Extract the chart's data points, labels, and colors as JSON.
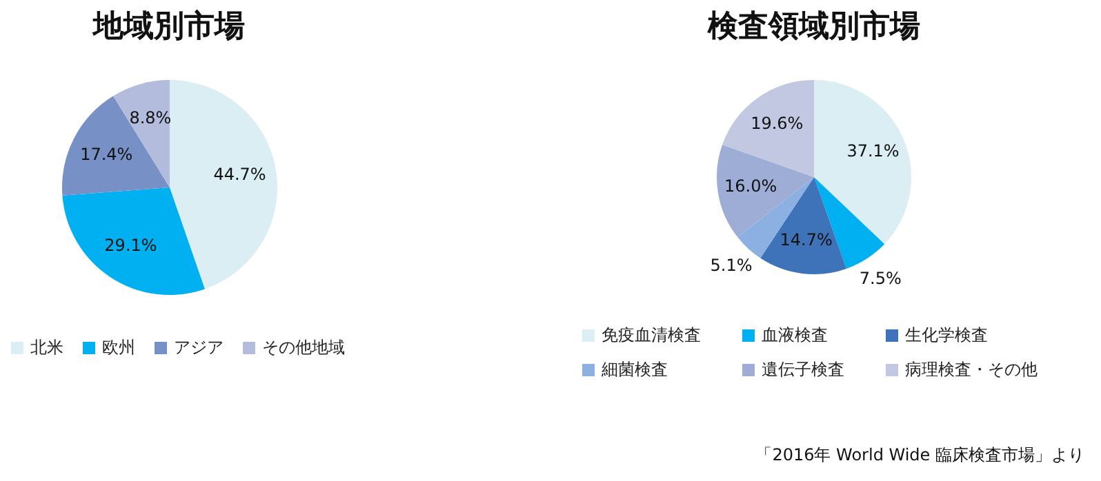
{
  "chart_data": [
    {
      "type": "pie",
      "title": "地域別市場",
      "categories": [
        "北米",
        "欧州",
        "アジア",
        "その他地域"
      ],
      "values": [
        44.7,
        29.1,
        17.4,
        8.8
      ],
      "value_labels": [
        "44.7%",
        "29.1%",
        "17.4%",
        "8.8%"
      ],
      "colors": [
        "#daeef3",
        "#00b0f0",
        "#7791c7",
        "#b3bcdc"
      ],
      "legend": "bottom"
    },
    {
      "type": "pie",
      "title": "検査領域別市場",
      "categories": [
        "免疫血清検査",
        "血液検査",
        "生化学検査",
        "細菌検査",
        "遺伝子検査",
        "病理検査・その他"
      ],
      "values": [
        37.1,
        7.5,
        14.7,
        5.1,
        16.0,
        19.6
      ],
      "value_labels": [
        "37.1%",
        "7.5%",
        "14.7%",
        "5.1%",
        "16.0%",
        "19.6%"
      ],
      "colors": [
        "#daeef3",
        "#00b0f0",
        "#3f73b9",
        "#8cb0e2",
        "#9dadd5",
        "#c2c8e2"
      ],
      "legend": "bottom",
      "annotations": [
        "「2016年 World Wide 臨床検査市場」より"
      ]
    }
  ]
}
